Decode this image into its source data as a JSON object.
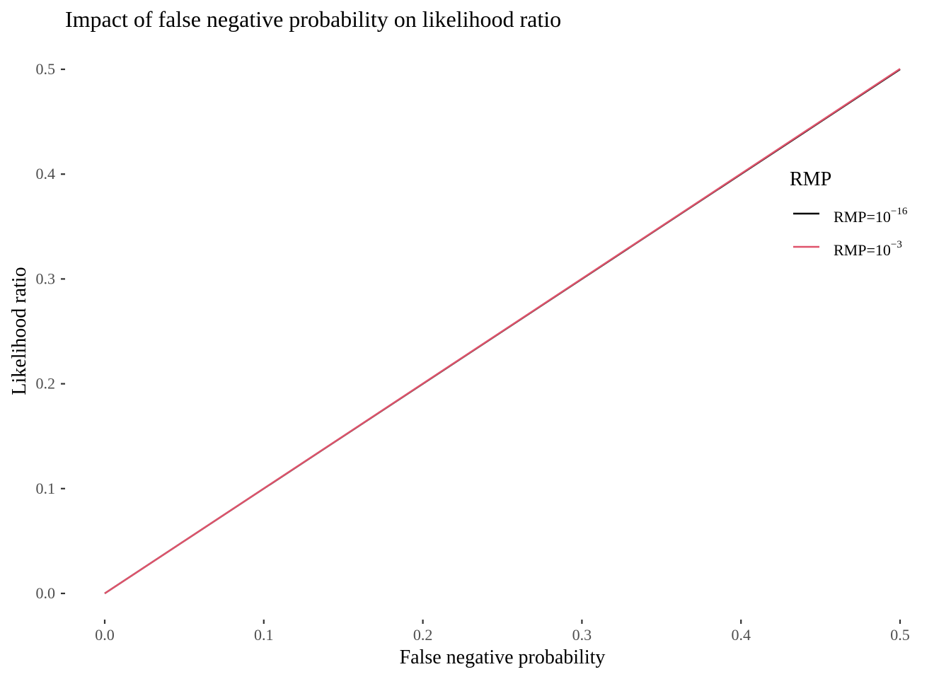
{
  "chart_data": {
    "type": "line",
    "title": "Impact of false negative probability on likelihood ratio",
    "xlabel": "False negative probability",
    "ylabel": "Likelihood ratio",
    "xlim": [
      0,
      0.5
    ],
    "ylim": [
      0,
      0.5
    ],
    "x_ticks": [
      "0.0",
      "0.1",
      "0.2",
      "0.3",
      "0.4",
      "0.5"
    ],
    "y_ticks": [
      "0.0",
      "0.1",
      "0.2",
      "0.3",
      "0.4",
      "0.5"
    ],
    "grid": false,
    "legend": {
      "title": "RMP",
      "placement": "right"
    },
    "series": [
      {
        "name": "RMP=10^-16",
        "label_base": "RMP=10",
        "label_exp": "−16",
        "color": "#000000",
        "x": [
          0,
          0.5
        ],
        "y": [
          0,
          0.5
        ]
      },
      {
        "name": "RMP=10^-3",
        "label_base": "RMP=10",
        "label_exp": "−3",
        "color": "#df536b",
        "x": [
          0,
          0.5
        ],
        "y": [
          0,
          0.5005
        ]
      }
    ]
  }
}
